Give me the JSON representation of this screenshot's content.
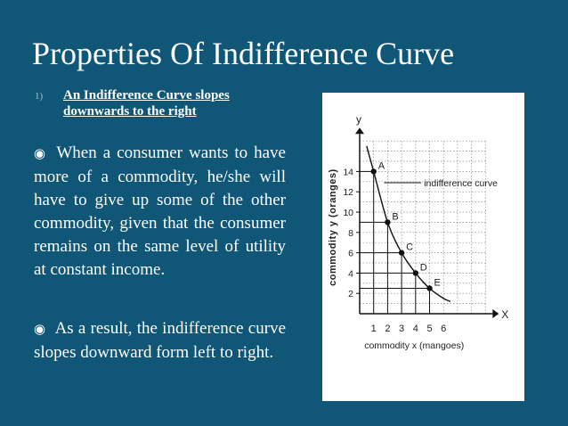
{
  "slide": {
    "title": "Properties Of Indifference Curve",
    "subheading_number": "1)",
    "subheading_line1": "An Indifference Curve slopes",
    "subheading_line2": "downwards to the right",
    "bullet1": "When a consumer wants to have more of a commodity, he/she will have to give up some of the other commodity, given that the consumer remains on the same level of utility at constant income.",
    "bullet2": "As a result, the indifference curve slopes downward form left to right.",
    "bullet_icon": "circle-dot-icon"
  },
  "chart_data": {
    "type": "line",
    "xlabel": "commodity x (mangoes)",
    "ylabel": "commodity y (oranges)",
    "x_axis_letter": "X",
    "y_axis_letter": "y",
    "x_ticks": [
      "1",
      "2",
      "3",
      "4",
      "5",
      "6"
    ],
    "y_ticks": [
      "2",
      "4",
      "6",
      "8",
      "10",
      "12",
      "14"
    ],
    "xlim": [
      0,
      9
    ],
    "ylim": [
      0,
      17
    ],
    "annotation": "indifference curve",
    "points": [
      {
        "label": "A",
        "x": 1,
        "y": 14
      },
      {
        "label": "B",
        "x": 2,
        "y": 9
      },
      {
        "label": "C",
        "x": 3,
        "y": 6
      },
      {
        "label": "D",
        "x": 4,
        "y": 4
      },
      {
        "label": "E",
        "x": 5,
        "y": 2.5
      }
    ],
    "curve": [
      [
        0.5,
        16.5
      ],
      [
        1,
        14
      ],
      [
        2,
        9
      ],
      [
        3,
        6
      ],
      [
        4,
        4
      ],
      [
        5,
        2.5
      ],
      [
        6,
        1.5
      ],
      [
        6.5,
        1.2
      ]
    ],
    "grid": true
  }
}
